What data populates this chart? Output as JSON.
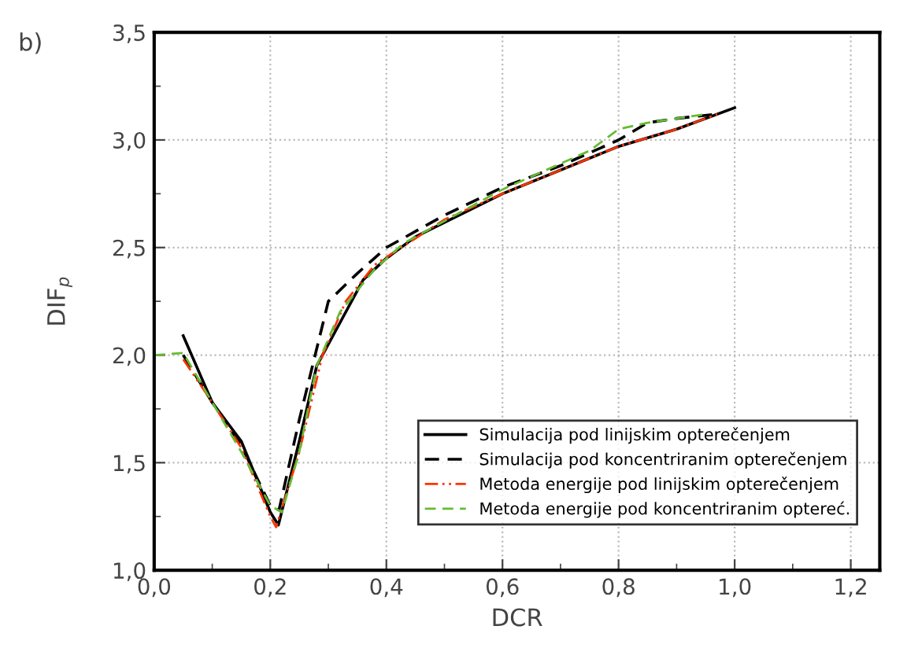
{
  "chart_data": {
    "type": "line",
    "xlabel": "DCR",
    "ylabel": "DIF$_{p}$",
    "annotations": [
      "b)"
    ],
    "xlim": [
      0,
      1.25
    ],
    "ylim": [
      1.0,
      3.5
    ],
    "xticks": [
      {
        "value": 0,
        "label": "0,0"
      },
      {
        "value": 0.2,
        "label": "0,2"
      },
      {
        "value": 0.4,
        "label": "0,4"
      },
      {
        "value": 0.6,
        "label": "0,6"
      },
      {
        "value": 0.8,
        "label": "0,8"
      },
      {
        "value": 1.0,
        "label": "1,0"
      },
      {
        "value": 1.2,
        "label": "1,2"
      }
    ],
    "yticks": [
      {
        "value": 1.0,
        "label": "1,0"
      },
      {
        "value": 1.5,
        "label": "1,5"
      },
      {
        "value": 2.0,
        "label": "2,0"
      },
      {
        "value": 2.5,
        "label": "2,5"
      },
      {
        "value": 3.0,
        "label": "3,0"
      },
      {
        "value": 3.5,
        "label": "3,5"
      }
    ],
    "grid": true,
    "legend": "bottom right",
    "marker": "none",
    "series": [
      {
        "name": "Simulacija pod linijskim opterečenjem",
        "color": "#000000",
        "line_style": "solid",
        "x": [
          0.05,
          0.1,
          0.15,
          0.2,
          0.214,
          0.25,
          0.28,
          0.32,
          0.36,
          0.4,
          0.45,
          0.6,
          0.8,
          0.9,
          1.0
        ],
        "values": [
          2.09,
          1.78,
          1.6,
          1.27,
          1.21,
          1.6,
          1.95,
          2.15,
          2.35,
          2.45,
          2.55,
          2.75,
          2.97,
          3.05,
          3.15
        ]
      },
      {
        "name": "Simulacija pod koncentriranim opterečenjem",
        "color": "#000000",
        "line_style": "dashed",
        "x": [
          0.05,
          0.1,
          0.15,
          0.2,
          0.215,
          0.25,
          0.3,
          0.35,
          0.4,
          0.5,
          0.6,
          0.7,
          0.8,
          0.85,
          0.9,
          0.97
        ],
        "values": [
          2.0,
          1.78,
          1.58,
          1.3,
          1.28,
          1.7,
          2.25,
          2.38,
          2.5,
          2.65,
          2.78,
          2.88,
          3.0,
          3.08,
          3.1,
          3.12
        ]
      },
      {
        "name": "Metoda energije pod linijskim opterečenjem",
        "color": "#ff3300",
        "line_style": "dashdot",
        "x": [
          0.05,
          0.1,
          0.15,
          0.2,
          0.21,
          0.25,
          0.29,
          0.33,
          0.38,
          0.5,
          0.6,
          0.7,
          0.8,
          0.9,
          0.97
        ],
        "values": [
          1.98,
          1.78,
          1.57,
          1.25,
          1.2,
          1.55,
          2.0,
          2.25,
          2.42,
          2.63,
          2.75,
          2.86,
          2.97,
          3.05,
          3.12
        ]
      },
      {
        "name": "Metoda energije pod koncentriranim optereć.",
        "color": "#66bb33",
        "line_style": "dashed",
        "x": [
          0.0,
          0.05,
          0.1,
          0.15,
          0.2,
          0.22,
          0.25,
          0.28,
          0.32,
          0.38,
          0.43,
          0.6,
          0.75,
          0.8,
          0.85,
          0.95
        ],
        "values": [
          2.0,
          2.01,
          1.78,
          1.55,
          1.3,
          1.27,
          1.55,
          1.95,
          2.2,
          2.4,
          2.52,
          2.77,
          2.95,
          3.05,
          3.08,
          3.12
        ]
      }
    ]
  }
}
